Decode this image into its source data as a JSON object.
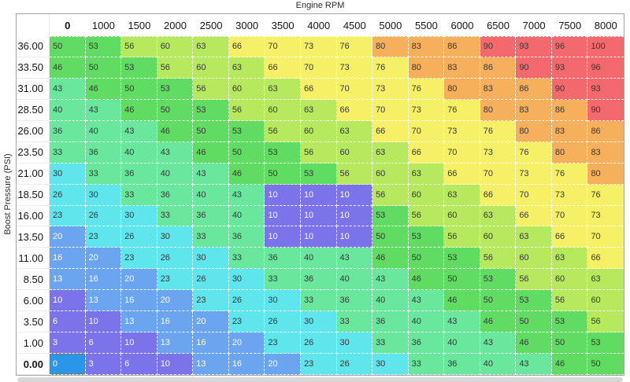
{
  "axes": {
    "x_title": "Engine RPM",
    "y_title": "Boost Pressure (PSI)"
  },
  "table": {
    "col_headers": [
      "0",
      "1000",
      "1500",
      "2000",
      "2500",
      "3000",
      "3500",
      "4000",
      "4500",
      "5000",
      "5500",
      "6000",
      "6500",
      "7000",
      "7500",
      "8000"
    ],
    "row_headers": [
      "36.00",
      "33.50",
      "31.00",
      "28.50",
      "26.00",
      "23.50",
      "21.00",
      "18.50",
      "16.00",
      "13.50",
      "11.00",
      "8.50",
      "6.00",
      "3.50",
      "1.00",
      "0.00"
    ],
    "values": [
      [
        50,
        53,
        56,
        60,
        63,
        66,
        70,
        73,
        76,
        80,
        83,
        86,
        90,
        93,
        96,
        100
      ],
      [
        46,
        50,
        53,
        56,
        60,
        63,
        66,
        70,
        73,
        76,
        80,
        83,
        86,
        90,
        93,
        96
      ],
      [
        43,
        46,
        50,
        53,
        56,
        60,
        63,
        66,
        70,
        73,
        76,
        80,
        83,
        86,
        90,
        93
      ],
      [
        40,
        43,
        46,
        50,
        53,
        56,
        60,
        63,
        66,
        70,
        73,
        76,
        80,
        83,
        86,
        90
      ],
      [
        36,
        40,
        43,
        46,
        50,
        53,
        56,
        60,
        63,
        66,
        70,
        73,
        76,
        80,
        83,
        86
      ],
      [
        33,
        36,
        40,
        43,
        46,
        50,
        53,
        56,
        60,
        63,
        66,
        70,
        73,
        76,
        80,
        83
      ],
      [
        30,
        33,
        36,
        40,
        43,
        46,
        50,
        53,
        56,
        60,
        63,
        66,
        70,
        73,
        76,
        80
      ],
      [
        26,
        30,
        33,
        36,
        40,
        43,
        10,
        10,
        10,
        56,
        60,
        63,
        66,
        70,
        73,
        76
      ],
      [
        23,
        26,
        30,
        33,
        36,
        40,
        10,
        10,
        10,
        53,
        56,
        60,
        63,
        66,
        70,
        73
      ],
      [
        20,
        23,
        26,
        30,
        33,
        36,
        10,
        10,
        10,
        50,
        53,
        56,
        60,
        63,
        66,
        70
      ],
      [
        16,
        20,
        23,
        26,
        30,
        33,
        36,
        40,
        43,
        46,
        50,
        53,
        56,
        60,
        63,
        66
      ],
      [
        13,
        16,
        20,
        23,
        26,
        30,
        33,
        36,
        40,
        43,
        46,
        50,
        53,
        56,
        60,
        63
      ],
      [
        10,
        13,
        16,
        20,
        23,
        26,
        30,
        33,
        36,
        40,
        43,
        46,
        50,
        53,
        56,
        60
      ],
      [
        6,
        10,
        13,
        16,
        20,
        23,
        26,
        30,
        33,
        36,
        40,
        43,
        46,
        50,
        53,
        56
      ],
      [
        3,
        6,
        10,
        13,
        16,
        20,
        23,
        26,
        30,
        33,
        36,
        40,
        43,
        46,
        50,
        53
      ],
      [
        0,
        3,
        6,
        10,
        13,
        16,
        20,
        23,
        26,
        30,
        33,
        36,
        40,
        43,
        46,
        50
      ]
    ],
    "selected": {
      "row": 15,
      "col": 0
    }
  },
  "colors": {
    "bins": [
      {
        "max": 12,
        "bg": "#7b73e9",
        "light_text": true
      },
      {
        "max": 22,
        "bg": "#6ba5ef",
        "light_text": true
      },
      {
        "max": 32,
        "bg": "#5fe5ec",
        "light_text": false
      },
      {
        "max": 45,
        "bg": "#69e79d",
        "light_text": false
      },
      {
        "max": 55,
        "bg": "#60dc63",
        "light_text": false
      },
      {
        "max": 65,
        "bg": "#b6e95d",
        "light_text": false
      },
      {
        "max": 78,
        "bg": "#f6f066",
        "light_text": false
      },
      {
        "max": 88,
        "bg": "#f6b05c",
        "light_text": false
      },
      {
        "max": 100,
        "bg": "#f4696d",
        "light_text": false
      }
    ],
    "selected_cell_bg": "#2a96e9",
    "selected_cell_border": "#7c7f58",
    "table_border": "#a2a2a7",
    "grid_dash": "#ffffff",
    "scrollbar": "#d8d8d8"
  }
}
